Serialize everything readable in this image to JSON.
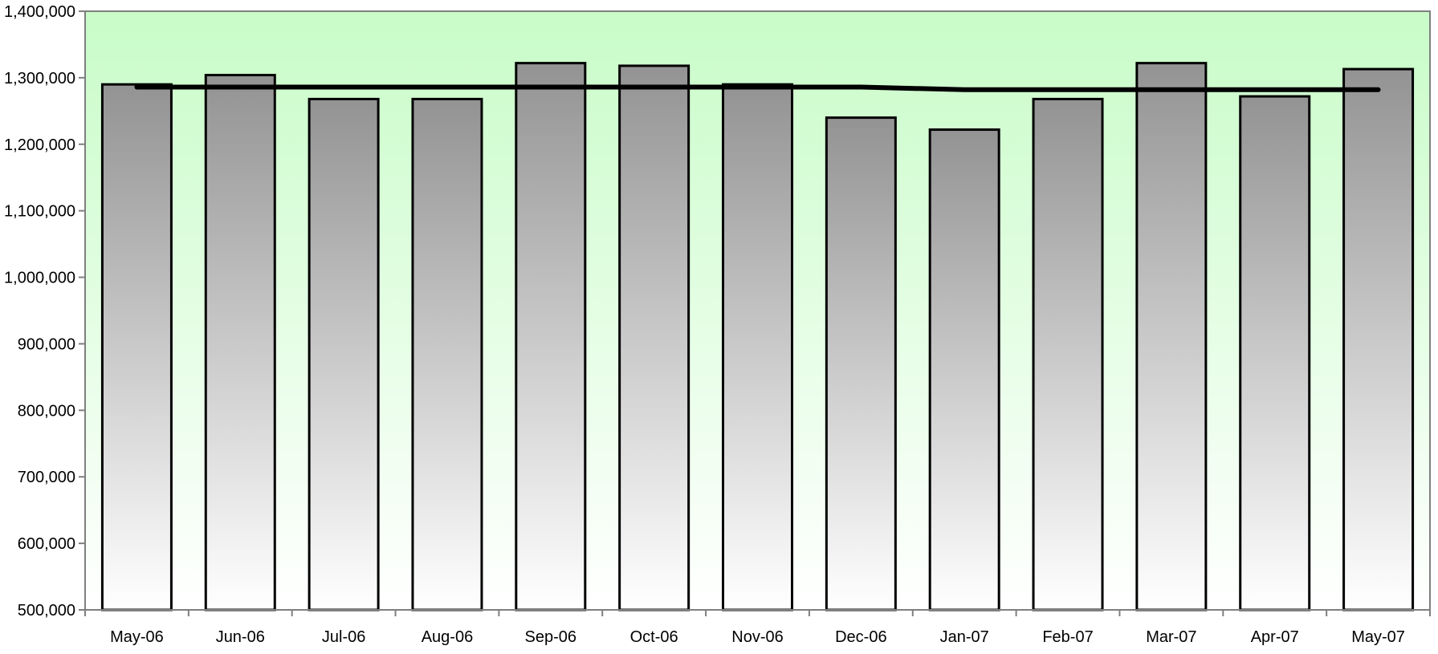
{
  "chart_data": {
    "type": "bar",
    "categories": [
      "May-06",
      "Jun-06",
      "Jul-06",
      "Aug-06",
      "Sep-06",
      "Oct-06",
      "Nov-06",
      "Dec-06",
      "Jan-07",
      "Feb-07",
      "Mar-07",
      "Apr-07",
      "May-07"
    ],
    "series": [
      {
        "type": "bar",
        "values": [
          1290000,
          1304000,
          1268000,
          1268000,
          1322000,
          1318000,
          1290000,
          1240000,
          1222000,
          1268000,
          1322000,
          1272000,
          1313000
        ]
      },
      {
        "type": "line",
        "values": [
          1286000,
          1286000,
          1286000,
          1286000,
          1286000,
          1286000,
          1286000,
          1286000,
          1282000,
          1282000,
          1282000,
          1282000,
          1282000
        ]
      }
    ],
    "ylim": [
      500000,
      1400000
    ],
    "ytick_step": 100000,
    "y_tick_labels": [
      "500,000",
      "600,000",
      "700,000",
      "800,000",
      "900,000",
      "1,000,000",
      "1,100,000",
      "1,200,000",
      "1,300,000",
      "1,400,000"
    ],
    "title": "",
    "xlabel": "",
    "ylabel": "",
    "grid": false,
    "legend": "none",
    "colors": {
      "plot_background_top": "#c8fcc8",
      "plot_background_bottom": "#ffffff",
      "bar_fill_top": "#939393",
      "bar_fill_bottom": "#ffffff",
      "bar_edge": "#000000",
      "line": "#000000",
      "axis": "#7f7f7f"
    }
  }
}
